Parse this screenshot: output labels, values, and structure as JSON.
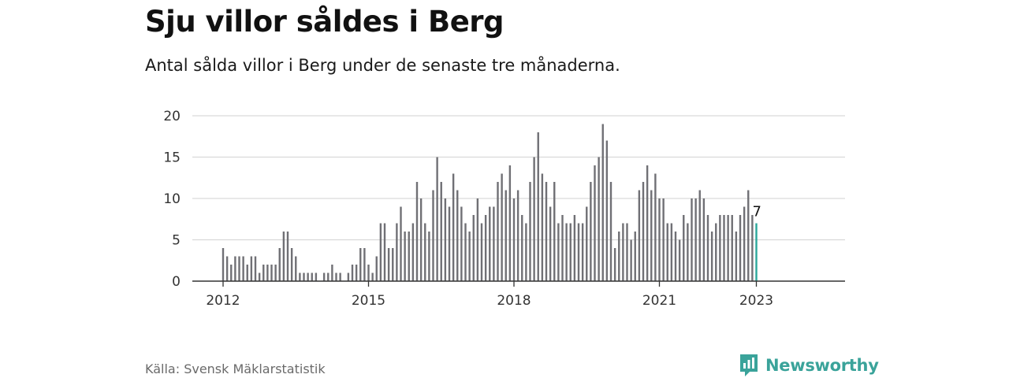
{
  "title": "Sju villor såldes i Berg",
  "subtitle": "Antal sålda villor i Berg under de senaste tre månaderna.",
  "source": "Källa: Svensk Mäklarstatistik",
  "brand": {
    "name": "Newsworthy",
    "icon": "newsworthy-logo-icon",
    "color": "#3aa39a"
  },
  "chart_data": {
    "type": "bar",
    "start": "2012-01",
    "x_ticks": [
      "2012",
      "2015",
      "2018",
      "2021",
      "2023"
    ],
    "y_ticks": [
      0,
      5,
      10,
      15,
      20
    ],
    "ylim": [
      0,
      20
    ],
    "grid": true,
    "bar_color": "#707075",
    "highlight_color": "#2aa79b",
    "last_label": "7",
    "values": [
      4,
      3,
      2,
      3,
      3,
      3,
      2,
      3,
      3,
      1,
      2,
      2,
      2,
      2,
      4,
      6,
      6,
      4,
      3,
      1,
      1,
      1,
      1,
      1,
      0,
      1,
      1,
      2,
      1,
      1,
      0,
      1,
      2,
      2,
      4,
      4,
      2,
      1,
      3,
      7,
      7,
      4,
      4,
      7,
      9,
      6,
      6,
      7,
      12,
      10,
      7,
      6,
      11,
      15,
      12,
      10,
      9,
      13,
      11,
      9,
      7,
      6,
      8,
      10,
      7,
      8,
      9,
      9,
      12,
      13,
      11,
      14,
      10,
      11,
      8,
      7,
      12,
      15,
      18,
      13,
      12,
      9,
      12,
      7,
      8,
      7,
      7,
      8,
      7,
      7,
      9,
      12,
      14,
      15,
      19,
      17,
      12,
      4,
      6,
      7,
      7,
      5,
      6,
      11,
      12,
      14,
      11,
      13,
      10,
      10,
      7,
      7,
      6,
      5,
      8,
      7,
      10,
      10,
      11,
      10,
      8,
      6,
      7,
      8,
      8,
      8,
      8,
      6,
      8,
      9,
      11,
      8,
      7
    ]
  }
}
